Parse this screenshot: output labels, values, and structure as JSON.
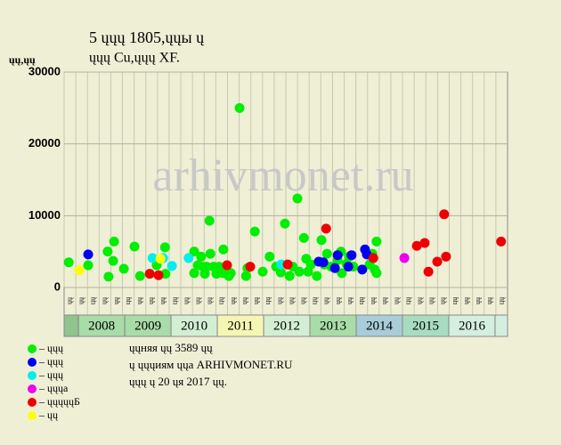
{
  "chart_data": {
    "type": "scatter",
    "title": "5 ųųų 1805,ųųы ų",
    "subtitle": "ųųų Cu,ųųų XF.",
    "y_label": "ųų,ųų",
    "watermark": "arhivmonet.ru",
    "xlim": [
      2007.69,
      2017.27
    ],
    "ylim": [
      0,
      30000
    ],
    "yticks": [
      0,
      10000,
      20000,
      30000
    ],
    "years": [
      "2008",
      "2009",
      "2010",
      "2011",
      "2012",
      "2013",
      "2014",
      "2015",
      "2016"
    ],
    "year_colors": [
      "#a8dca8",
      "#a8dca8",
      "#d4eed4",
      "#f6f6b4",
      "#d4eed4",
      "#a8dca8",
      "#a8ccd8",
      "#a8dcc0",
      "#d4eee0"
    ],
    "x_labels": [
      "ųų",
      "ųų",
      "цų",
      "ųų",
      "ųų",
      "цų",
      "ųų",
      "ųų",
      "ųų",
      "цų",
      "ųų",
      "ųų",
      "ųų",
      "цų",
      "ųų",
      "ųų",
      "ųų",
      "цų",
      "ųų",
      "ųų",
      "ųų",
      "цų",
      "ųų",
      "ųų",
      "ųų",
      "цų",
      "ųų",
      "ųų",
      "ųų",
      "цų",
      "ųų",
      "ųų",
      "ųų",
      "цų",
      "ųų",
      "ųų",
      "ųų",
      "цų"
    ],
    "notes": [
      "ųųняя ųų 3589 ųų",
      "ų ųųųиям ųųа ARHIVMONET.RU",
      "ųųų ų 20 ųя 2017 ųų."
    ],
    "series": [
      {
        "name": "– ųųų",
        "color": "#00ee00",
        "x": [
          2007.79,
          2008.21,
          2008.63,
          2008.65,
          2008.75,
          2008.77,
          2008.98,
          2009.21,
          2009.33,
          2009.69,
          2009.87,
          2009.88,
          2010.5,
          2010.5,
          2010.58,
          2010.65,
          2010.69,
          2010.73,
          2010.77,
          2010.83,
          2010.85,
          2010.92,
          2010.98,
          2011.04,
          2011.12,
          2011.13,
          2011.25,
          2011.29,
          2011.48,
          2011.62,
          2011.65,
          2011.81,
          2011.98,
          2012.13,
          2012.27,
          2012.37,
          2012.46,
          2012.56,
          2012.63,
          2012.73,
          2012.77,
          2012.87,
          2012.92,
          2012.96,
          2013.02,
          2013.15,
          2013.25,
          2013.31,
          2013.37,
          2013.46,
          2013.6,
          2013.67,
          2013.69,
          2013.79,
          2013.85,
          2013.94,
          2014.29,
          2014.35,
          2014.4,
          2014.44,
          2014.44
        ],
        "values": [
          3500,
          3100,
          5000,
          1500,
          3700,
          6400,
          2600,
          5700,
          1600,
          3100,
          5600,
          1900,
          5000,
          2000,
          3100,
          4300,
          2900,
          1900,
          2900,
          9300,
          4700,
          2900,
          1900,
          2900,
          2000,
          5300,
          1600,
          2000,
          25000,
          1600,
          2700,
          7800,
          2200,
          4300,
          2900,
          2100,
          8900,
          1600,
          2900,
          12400,
          2200,
          6900,
          4000,
          2200,
          3200,
          1600,
          6600,
          3200,
          4700,
          2900,
          3800,
          5000,
          2000,
          3300,
          4300,
          2900,
          3200,
          4700,
          2500,
          6400,
          2000
        ]
      },
      {
        "name": "– ųųų",
        "color": "#0000ee",
        "x": [
          2008.21,
          2013.19,
          2013.29,
          2013.54,
          2013.6,
          2013.83,
          2013.9,
          2014.13,
          2014.19,
          2014.23
        ],
        "values": [
          4600,
          3600,
          3500,
          2700,
          4500,
          2900,
          4500,
          2500,
          5300,
          4600
        ]
      },
      {
        "name": "– ųųų",
        "color": "#00eeee",
        "x": [
          2009.6,
          2009.83,
          2010.02,
          2010.38,
          2012.38
        ],
        "values": [
          4100,
          4100,
          3000,
          4100,
          3200
        ]
      },
      {
        "name": "– ųųųа",
        "color": "#ee00ee",
        "x": [
          2015.04
        ],
        "values": [
          4100
        ]
      },
      {
        "name": "– ųųųųųБ",
        "color": "#ee0000",
        "x": [
          2009.54,
          2009.73,
          2011.21,
          2011.71,
          2012.52,
          2013.35,
          2014.37,
          2015.31,
          2015.48,
          2015.56,
          2015.75,
          2015.9,
          2015.94,
          2017.13
        ],
        "values": [
          1900,
          1700,
          3100,
          2900,
          3200,
          8200,
          4100,
          5800,
          6200,
          2200,
          3600,
          10200,
          4300,
          6400
        ]
      },
      {
        "name": "– ųų",
        "color": "#ffff00",
        "x": [
          2008.02,
          2009.77
        ],
        "values": [
          2400,
          4000
        ]
      }
    ]
  }
}
